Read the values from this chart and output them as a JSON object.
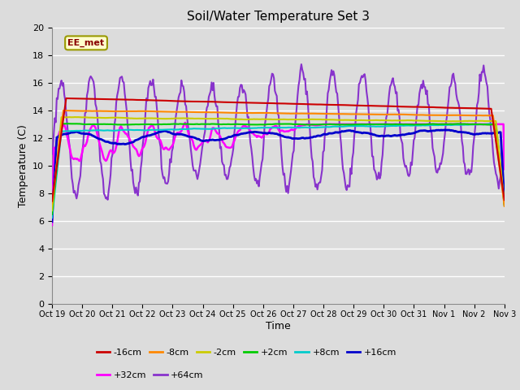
{
  "title": "Soil/Water Temperature Set 3",
  "xlabel": "Time",
  "ylabel": "Temperature (C)",
  "ylim": [
    0,
    20
  ],
  "yticks": [
    0,
    2,
    4,
    6,
    8,
    10,
    12,
    14,
    16,
    18,
    20
  ],
  "x_tick_labels": [
    "Oct 19",
    "Oct 20",
    "Oct 21",
    "Oct 22",
    "Oct 23",
    "Oct 24",
    "Oct 25",
    "Oct 26",
    "Oct 27",
    "Oct 28",
    "Oct 29",
    "Oct 30",
    "Oct 31",
    "Nov 1",
    "Nov 2",
    "Nov 3"
  ],
  "n_points": 480,
  "series": {
    "-16cm": {
      "color": "#cc0000"
    },
    "-8cm": {
      "color": "#ff8800"
    },
    "-2cm": {
      "color": "#cccc00"
    },
    "+2cm": {
      "color": "#00cc00"
    },
    "+8cm": {
      "color": "#00cccc"
    },
    "+16cm": {
      "color": "#0000cc"
    },
    "+32cm": {
      "color": "#ff00ff"
    },
    "+64cm": {
      "color": "#8833cc"
    }
  },
  "annotation_text": "EE_met",
  "background_color": "#dcdcdc",
  "plot_bg_color": "#dcdcdc"
}
